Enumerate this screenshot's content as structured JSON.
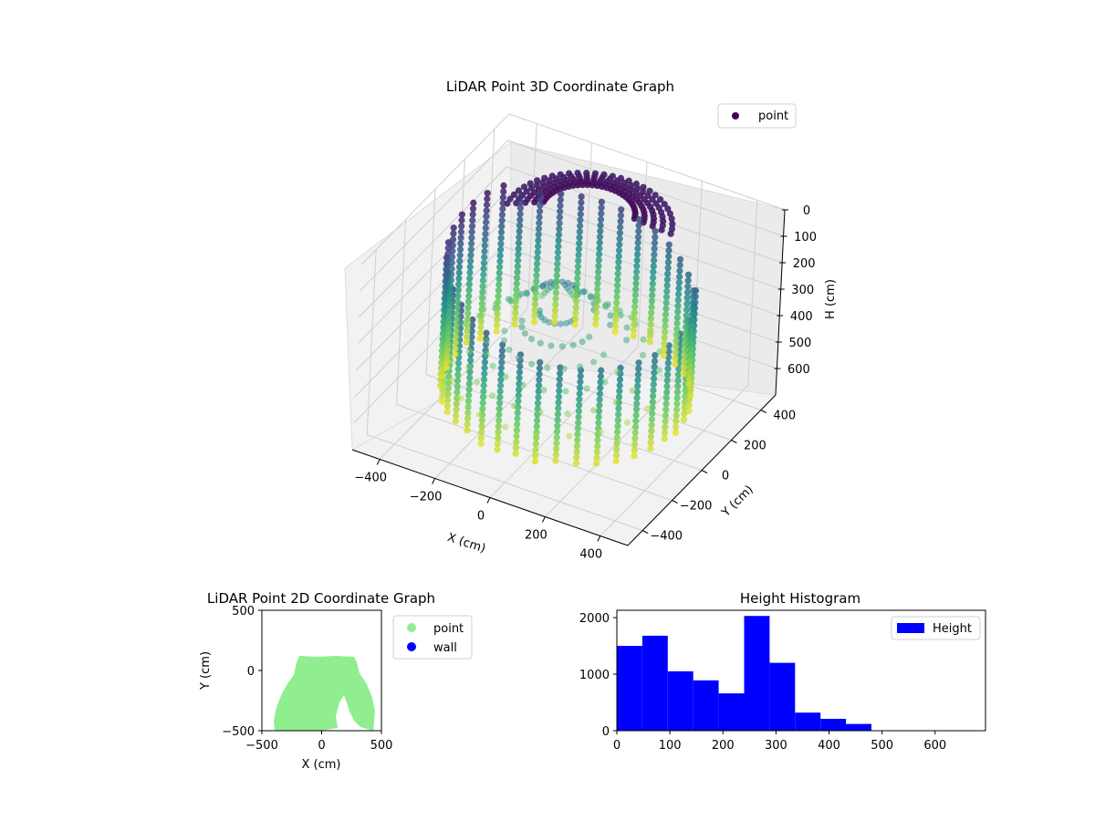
{
  "figure": {
    "width": 1200,
    "height": 900
  },
  "chart_data": [
    {
      "id": "lidar-3d",
      "type": "scatter",
      "title": "LiDAR Point 3D Coordinate Graph",
      "xlabel": "X (cm)",
      "ylabel": "Y (cm)",
      "zlabel": "H (cm)",
      "xticks": [
        -400,
        -200,
        0,
        200,
        400
      ],
      "yticks": [
        -400,
        -200,
        0,
        200,
        400
      ],
      "zticks": [
        0,
        100,
        200,
        300,
        400,
        500,
        600
      ],
      "xlim": [
        -500,
        500
      ],
      "ylim": [
        -500,
        500
      ],
      "zlim": [
        0,
        700
      ],
      "zinverted": true,
      "legend": {
        "entries": [
          "point"
        ],
        "placement": "top-right"
      },
      "colormap": "viridis",
      "colors": [
        "#440154",
        "#3b528b",
        "#21918c",
        "#5ec962",
        "#fde725"
      ],
      "grid": true
    },
    {
      "id": "lidar-2d",
      "type": "scatter",
      "title": "LiDAR Point 2D Coordinate Graph",
      "xlabel": "X (cm)",
      "ylabel": "Y (cm)",
      "xticks": [
        -500,
        0,
        500
      ],
      "yticks": [
        500,
        0,
        -500
      ],
      "xlim": [
        -500,
        500
      ],
      "ylim": [
        -500,
        500
      ],
      "series": [
        {
          "name": "point",
          "color": "#90ee90"
        },
        {
          "name": "wall",
          "color": "#0000ff"
        }
      ],
      "legend": {
        "placement": "outside-right"
      }
    },
    {
      "id": "height-hist",
      "type": "bar",
      "title": "Height Histogram",
      "xlabel": "",
      "ylabel": "",
      "xticks": [
        0,
        100,
        200,
        300,
        400,
        500,
        600
      ],
      "yticks": [
        0,
        1000,
        2000
      ],
      "xlim": [
        0,
        695
      ],
      "ylim": [
        0,
        2130
      ],
      "bin_edges": [
        0,
        48,
        96,
        144,
        192,
        240,
        288,
        336,
        384,
        432,
        480,
        528,
        576,
        624,
        672
      ],
      "values": [
        1500,
        1680,
        1050,
        890,
        660,
        2030,
        1200,
        320,
        210,
        120,
        0,
        0,
        0,
        0
      ],
      "series": [
        {
          "name": "Height",
          "color": "#0000ff"
        }
      ],
      "legend": {
        "placement": "top-right"
      }
    }
  ]
}
